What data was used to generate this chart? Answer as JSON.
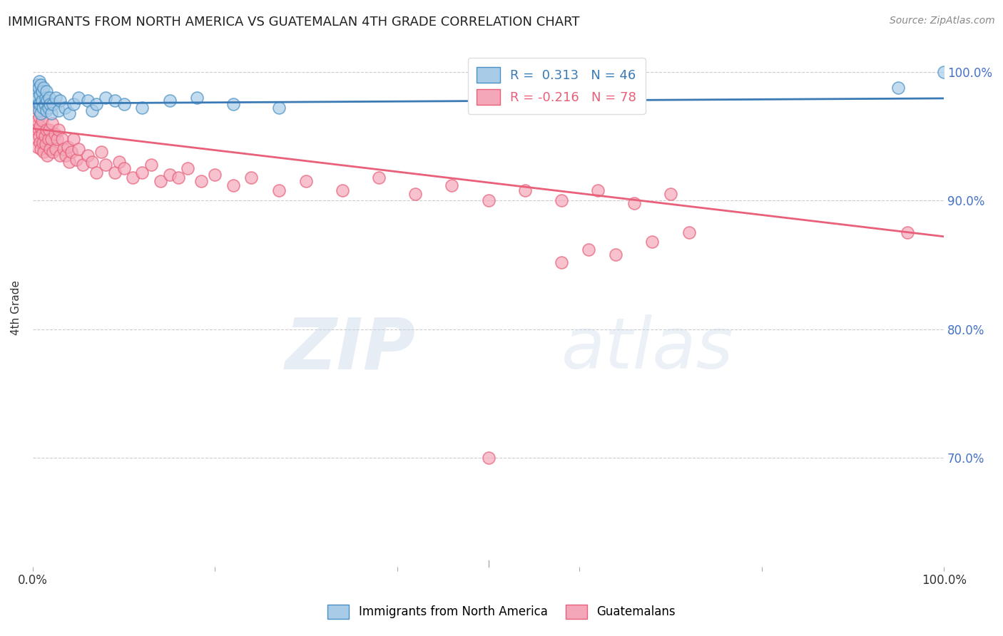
{
  "title": "IMMIGRANTS FROM NORTH AMERICA VS GUATEMALAN 4TH GRADE CORRELATION CHART",
  "source": "Source: ZipAtlas.com",
  "ylabel": "4th Grade",
  "xlim": [
    0.0,
    1.0
  ],
  "ylim": [
    0.615,
    1.018
  ],
  "yticks": [
    0.7,
    0.8,
    0.9,
    1.0
  ],
  "ytick_labels": [
    "70.0%",
    "80.0%",
    "90.0%",
    "100.0%"
  ],
  "xticks": [
    0.0,
    0.2,
    0.4,
    0.6,
    0.8,
    1.0
  ],
  "xtick_labels": [
    "0.0%",
    "",
    "",
    "",
    "",
    "100.0%"
  ],
  "blue_r": 0.313,
  "blue_n": 46,
  "pink_r": -0.216,
  "pink_n": 78,
  "blue_color": "#a8cce8",
  "pink_color": "#f4a7b9",
  "blue_edge_color": "#4a90c4",
  "pink_edge_color": "#e8607a",
  "blue_line_color": "#3a7ab5",
  "pink_line_color": "#e8607a",
  "right_label_color": "#4472C4",
  "background_color": "#ffffff",
  "grid_color": "#cccccc",
  "blue_scatter_x": [
    0.003,
    0.004,
    0.005,
    0.005,
    0.006,
    0.006,
    0.007,
    0.007,
    0.008,
    0.008,
    0.009,
    0.009,
    0.01,
    0.01,
    0.011,
    0.012,
    0.013,
    0.014,
    0.015,
    0.015,
    0.016,
    0.017,
    0.018,
    0.019,
    0.02,
    0.022,
    0.025,
    0.028,
    0.03,
    0.035,
    0.04,
    0.045,
    0.05,
    0.06,
    0.065,
    0.07,
    0.08,
    0.09,
    0.1,
    0.12,
    0.15,
    0.18,
    0.22,
    0.27,
    0.95,
    1.0
  ],
  "blue_scatter_y": [
    0.978,
    0.985,
    0.98,
    0.99,
    0.975,
    0.988,
    0.97,
    0.993,
    0.982,
    0.975,
    0.968,
    0.99,
    0.978,
    0.985,
    0.972,
    0.988,
    0.975,
    0.98,
    0.97,
    0.985,
    0.978,
    0.972,
    0.98,
    0.975,
    0.968,
    0.975,
    0.98,
    0.97,
    0.978,
    0.972,
    0.968,
    0.975,
    0.98,
    0.978,
    0.97,
    0.975,
    0.98,
    0.978,
    0.975,
    0.972,
    0.978,
    0.98,
    0.975,
    0.972,
    0.988,
    1.0
  ],
  "pink_scatter_x": [
    0.002,
    0.003,
    0.004,
    0.005,
    0.005,
    0.006,
    0.007,
    0.007,
    0.008,
    0.008,
    0.009,
    0.01,
    0.01,
    0.011,
    0.012,
    0.013,
    0.014,
    0.015,
    0.016,
    0.017,
    0.018,
    0.019,
    0.02,
    0.021,
    0.022,
    0.024,
    0.025,
    0.027,
    0.028,
    0.03,
    0.032,
    0.034,
    0.036,
    0.038,
    0.04,
    0.042,
    0.045,
    0.048,
    0.05,
    0.055,
    0.06,
    0.065,
    0.07,
    0.075,
    0.08,
    0.09,
    0.095,
    0.1,
    0.11,
    0.12,
    0.13,
    0.14,
    0.15,
    0.16,
    0.17,
    0.185,
    0.2,
    0.22,
    0.24,
    0.27,
    0.3,
    0.34,
    0.38,
    0.42,
    0.46,
    0.5,
    0.54,
    0.58,
    0.62,
    0.66,
    0.7,
    0.58,
    0.61,
    0.64,
    0.68,
    0.72,
    0.96,
    0.5
  ],
  "pink_scatter_y": [
    0.972,
    0.958,
    0.948,
    0.962,
    0.942,
    0.955,
    0.95,
    0.965,
    0.945,
    0.958,
    0.94,
    0.952,
    0.962,
    0.945,
    0.938,
    0.95,
    0.944,
    0.955,
    0.935,
    0.948,
    0.955,
    0.94,
    0.948,
    0.96,
    0.938,
    0.952,
    0.94,
    0.948,
    0.955,
    0.935,
    0.948,
    0.94,
    0.935,
    0.942,
    0.93,
    0.938,
    0.948,
    0.932,
    0.94,
    0.928,
    0.935,
    0.93,
    0.922,
    0.938,
    0.928,
    0.922,
    0.93,
    0.925,
    0.918,
    0.922,
    0.928,
    0.915,
    0.92,
    0.918,
    0.925,
    0.915,
    0.92,
    0.912,
    0.918,
    0.908,
    0.915,
    0.908,
    0.918,
    0.905,
    0.912,
    0.9,
    0.908,
    0.9,
    0.908,
    0.898,
    0.905,
    0.852,
    0.862,
    0.858,
    0.868,
    0.875,
    0.875,
    0.7
  ]
}
